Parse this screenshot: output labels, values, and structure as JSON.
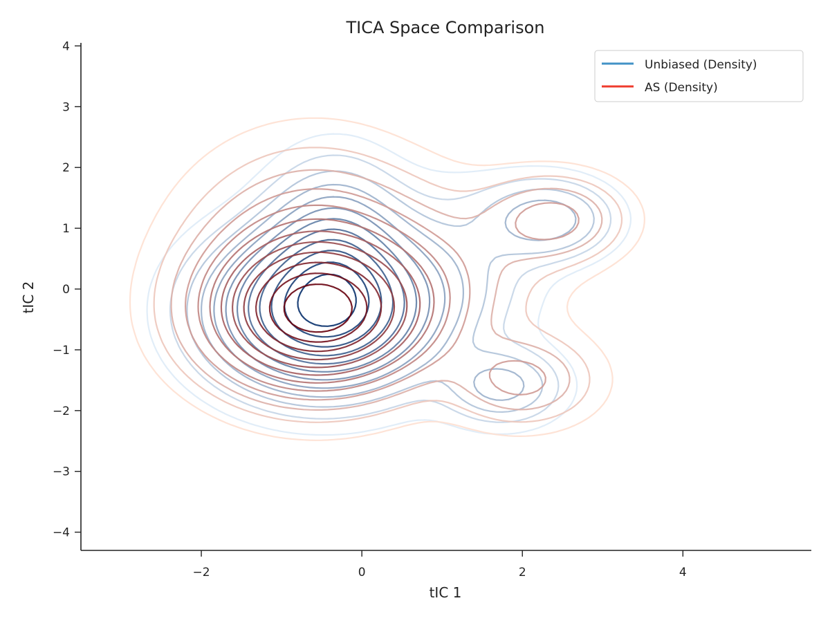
{
  "chart_data": {
    "type": "contour",
    "title": "TICA Space Comparison",
    "xlabel": "tIC 1",
    "ylabel": "tIC 2",
    "xlim": [
      -3.5,
      5.6
    ],
    "ylim": [
      -4.3,
      4.05
    ],
    "xticks": [
      -2,
      0,
      2,
      4
    ],
    "yticks": [
      -4,
      -3,
      -2,
      -1,
      0,
      1,
      2,
      3,
      4
    ],
    "xtick_labels": [
      "−2",
      "0",
      "2",
      "4"
    ],
    "ytick_labels": [
      "−4",
      "−3",
      "−2",
      "−1",
      "0",
      "1",
      "2",
      "3",
      "4"
    ],
    "grid": false,
    "legend_position": "top-right",
    "series": [
      {
        "name": "Unbiased (Density)",
        "legend_color": "#4292c6",
        "colormap_light": "#deebf7",
        "colormap_dark": "#08306b",
        "components": [
          {
            "mx": -0.5,
            "my": -0.35,
            "sx": 0.8,
            "sy": 0.75,
            "w": 1.0
          },
          {
            "mx": -0.35,
            "my": 0.55,
            "sx": 0.5,
            "sy": 0.85,
            "w": 0.38
          },
          {
            "mx": 2.3,
            "my": 1.15,
            "sx": 0.5,
            "sy": 0.4,
            "w": 0.22
          },
          {
            "mx": 1.75,
            "my": -1.6,
            "sx": 0.45,
            "sy": 0.38,
            "w": 0.2
          },
          {
            "mx": 1.1,
            "my": 0.3,
            "sx": 0.7,
            "sy": 0.9,
            "w": 0.1
          }
        ]
      },
      {
        "name": "AS (Density)",
        "legend_color": "#ef3b2c",
        "colormap_light": "#fee0d2",
        "colormap_dark": "#67000d",
        "components": [
          {
            "mx": -0.55,
            "my": -0.4,
            "sx": 0.8,
            "sy": 0.7,
            "w": 1.0
          },
          {
            "mx": -0.6,
            "my": 0.3,
            "sx": 0.9,
            "sy": 1.1,
            "w": 0.35
          },
          {
            "mx": 2.4,
            "my": 1.15,
            "sx": 0.55,
            "sy": 0.45,
            "w": 0.2
          },
          {
            "mx": 2.0,
            "my": -1.5,
            "sx": 0.55,
            "sy": 0.45,
            "w": 0.2
          },
          {
            "mx": 1.2,
            "my": 0.2,
            "sx": 0.8,
            "sy": 0.9,
            "w": 0.1
          }
        ]
      }
    ]
  }
}
